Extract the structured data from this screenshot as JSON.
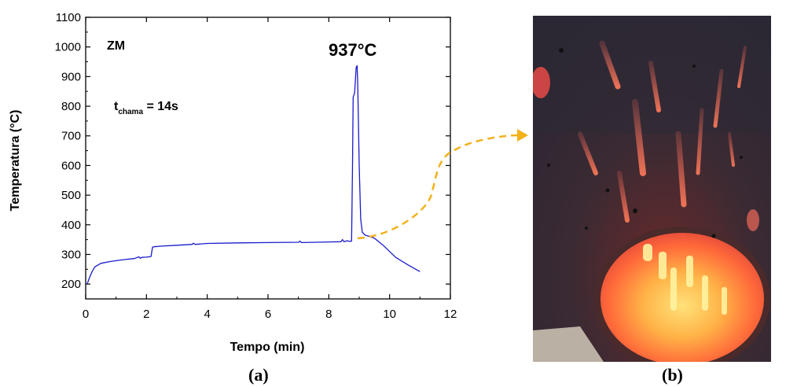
{
  "chart_data": {
    "type": "line",
    "xlabel": "Tempo (min)",
    "ylabel": "Temperatura (°C)",
    "xlim": [
      0,
      12
    ],
    "ylim": [
      150,
      1100
    ],
    "xticks": [
      0,
      2,
      4,
      6,
      8,
      10,
      12
    ],
    "yticks": [
      200,
      300,
      400,
      500,
      600,
      700,
      800,
      900,
      1000,
      1100
    ],
    "grid": false,
    "series": [
      {
        "color": "#1a1acc",
        "x": [
          0.05,
          0.1,
          0.2,
          0.3,
          0.5,
          0.8,
          1.0,
          1.3,
          1.6,
          1.75,
          1.8,
          1.85,
          2.0,
          2.15,
          2.2,
          2.25,
          2.5,
          3.0,
          3.5,
          3.55,
          3.6,
          4.0,
          5.0,
          6.0,
          7.0,
          7.05,
          7.1,
          8.0,
          8.4,
          8.45,
          8.5,
          8.6,
          8.7,
          8.75,
          8.78,
          8.8,
          8.85,
          8.9,
          8.93,
          8.95,
          9.0,
          9.05,
          9.1,
          9.2,
          9.3,
          9.5,
          9.8,
          10.2,
          10.6,
          11.0
        ],
        "y": [
          200,
          215,
          240,
          258,
          270,
          276,
          279,
          283,
          286,
          292,
          287,
          290,
          291,
          293,
          325,
          326,
          328,
          331,
          334,
          338,
          334,
          337,
          339,
          340,
          341,
          345,
          340,
          342,
          343,
          350,
          343,
          346,
          344,
          345,
          600,
          830,
          845,
          930,
          937,
          880,
          600,
          420,
          375,
          365,
          362,
          355,
          330,
          290,
          265,
          242
        ]
      }
    ],
    "annotations": [
      "ZM",
      "937°C"
    ],
    "subscript_annotation": {
      "base": "t",
      "sub": "chama",
      "rest": " = 14s"
    }
  },
  "labels": {
    "panel_a": "(a)",
    "panel_b": "(b)"
  }
}
